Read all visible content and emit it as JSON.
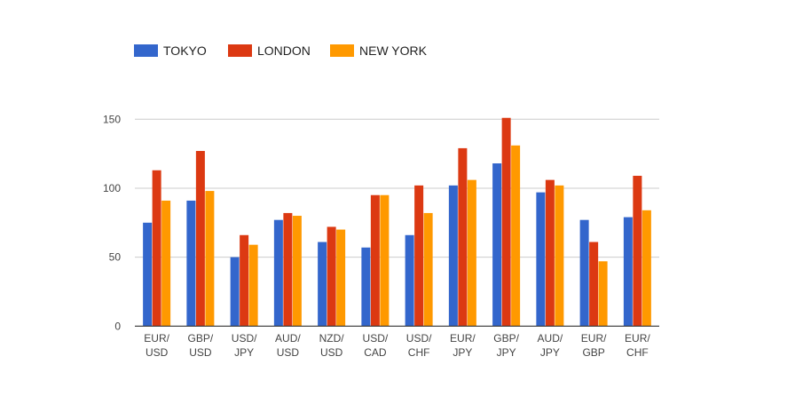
{
  "chart_data": {
    "type": "bar",
    "title": "",
    "xlabel": "",
    "ylabel": "",
    "ylim": [
      0,
      150
    ],
    "yticks": [
      0,
      50,
      100,
      150
    ],
    "grid": true,
    "legend_position": "top-left",
    "categories": [
      [
        "EUR/",
        "USD"
      ],
      [
        "GBP/",
        "USD"
      ],
      [
        "USD/",
        "JPY"
      ],
      [
        "AUD/",
        "USD"
      ],
      [
        "NZD/",
        "USD"
      ],
      [
        "USD/",
        "CAD"
      ],
      [
        "USD/",
        "CHF"
      ],
      [
        "EUR/",
        "JPY"
      ],
      [
        "GBP/",
        "JPY"
      ],
      [
        "AUD/",
        "JPY"
      ],
      [
        "EUR/",
        "GBP"
      ],
      [
        "EUR/",
        "CHF"
      ]
    ],
    "series": [
      {
        "name": "TOKYO",
        "color": "#3366cc",
        "values": [
          75,
          91,
          50,
          77,
          61,
          57,
          66,
          102,
          118,
          97,
          77,
          79
        ]
      },
      {
        "name": "LONDON",
        "color": "#dc3912",
        "values": [
          113,
          127,
          66,
          82,
          72,
          95,
          102,
          129,
          151,
          106,
          61,
          109
        ]
      },
      {
        "name": "NEW YORK",
        "color": "#ff9900",
        "values": [
          91,
          98,
          59,
          80,
          70,
          95,
          82,
          106,
          131,
          102,
          47,
          84
        ]
      }
    ]
  }
}
